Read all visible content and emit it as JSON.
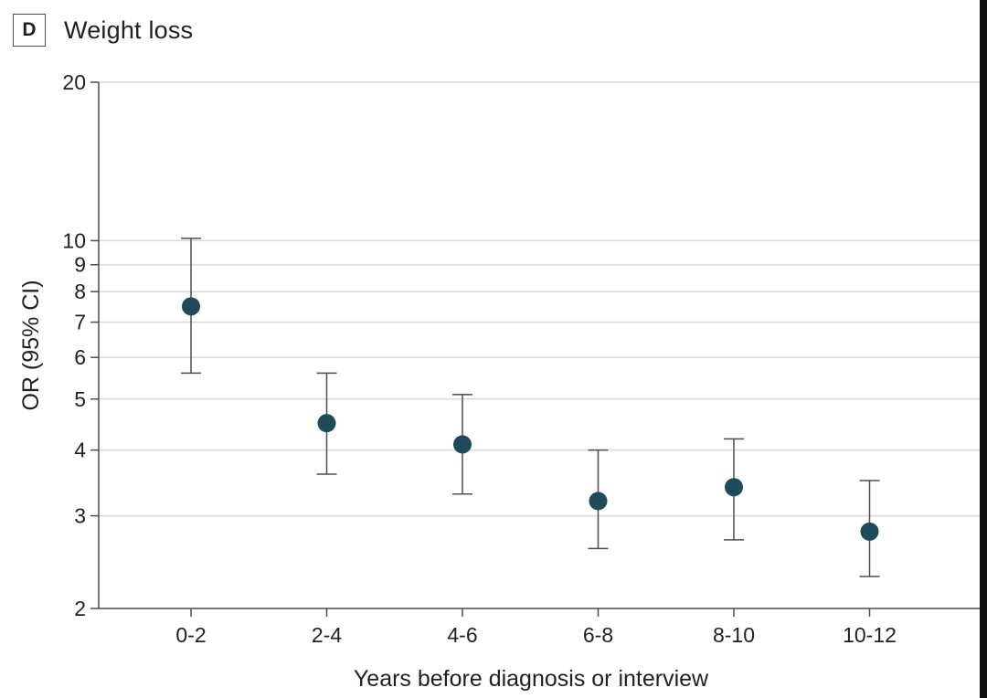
{
  "panel": {
    "letter": "D",
    "title": "Weight loss"
  },
  "chart_data": {
    "type": "scatter",
    "subtype": "point-estimate-with-error-bars",
    "title": "Weight loss",
    "xlabel": "Years before diagnosis or interview",
    "ylabel": "OR (95% CI)",
    "y_scale": "log",
    "ylim": [
      2,
      20
    ],
    "y_ticks": [
      2,
      3,
      4,
      5,
      6,
      7,
      8,
      9,
      10,
      20
    ],
    "grid": true,
    "categories": [
      "0-2",
      "2-4",
      "4-6",
      "6-8",
      "8-10",
      "10-12"
    ],
    "series": [
      {
        "or": [
          7.5,
          4.5,
          4.1,
          3.2,
          3.4,
          2.8
        ],
        "ci_low": [
          5.6,
          3.6,
          3.3,
          2.6,
          2.7,
          2.3
        ],
        "ci_high": [
          10.1,
          5.6,
          5.1,
          4.0,
          4.2,
          3.5
        ]
      }
    ],
    "colors": {
      "point": "#1f4a5a",
      "errorbar": "#4d4d4d",
      "grid": "#d9d9d9",
      "axis": "#4d4d4d"
    }
  }
}
